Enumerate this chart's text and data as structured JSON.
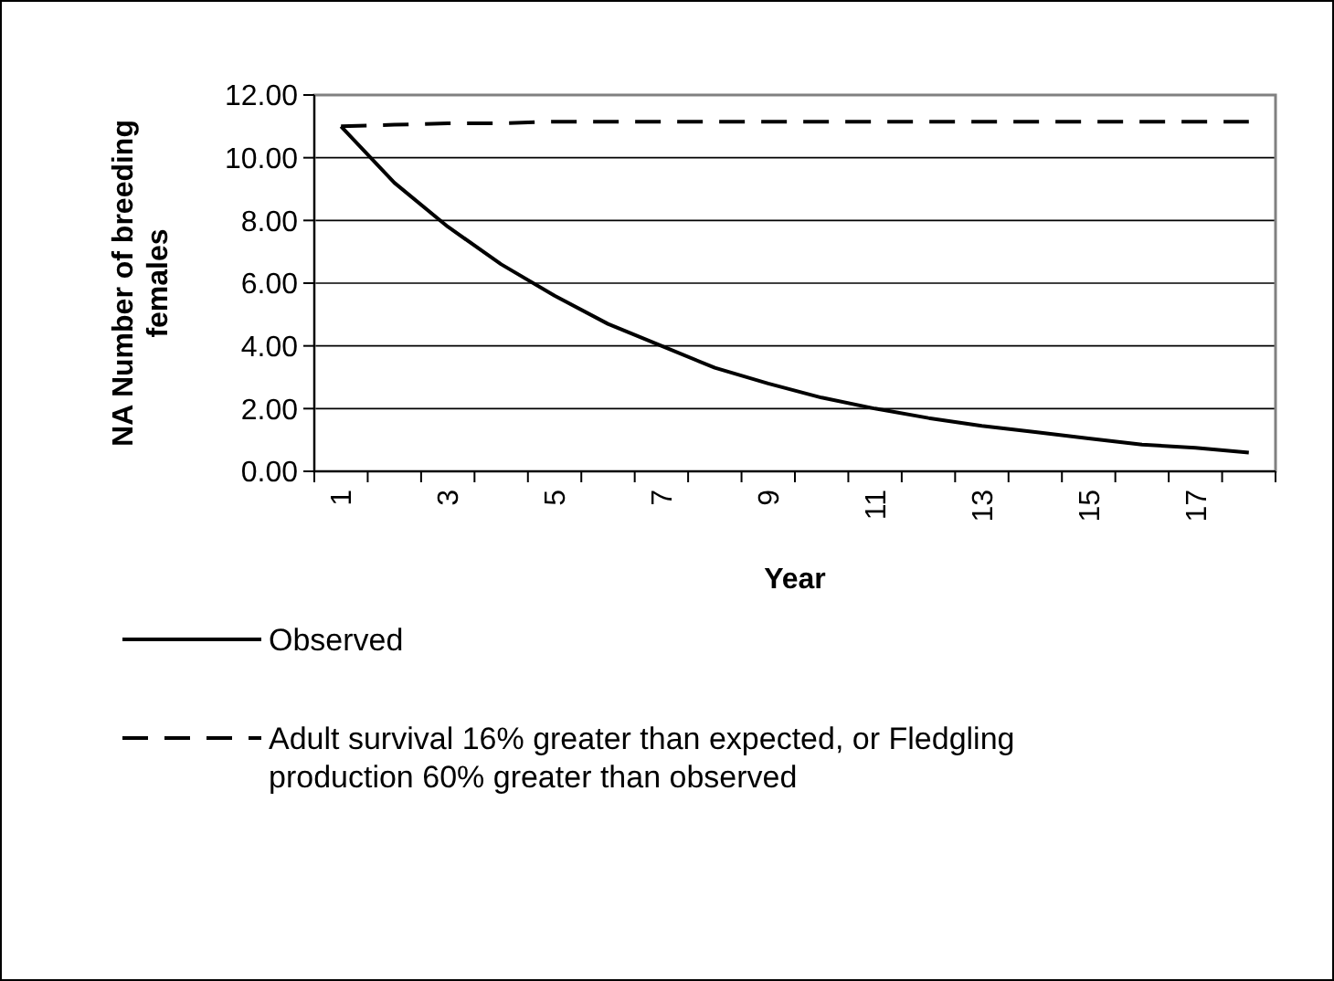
{
  "chart_data": {
    "type": "line",
    "xlabel": "Year",
    "ylabel": "NA  Number of breeding females",
    "categories": [
      "1",
      null,
      "3",
      null,
      "5",
      null,
      "7",
      null,
      "9",
      null,
      "11",
      null,
      "13",
      null,
      "15",
      null,
      "17",
      null
    ],
    "series": [
      {
        "name": "Observed",
        "color": "#000000",
        "line_style": "solid",
        "values": [
          11,
          9.2,
          7.8,
          6.6,
          5.6,
          4.7,
          4.0,
          3.3,
          2.8,
          2.35,
          2.0,
          1.7,
          1.45,
          1.25,
          1.05,
          0.85,
          0.75,
          0.6
        ]
      },
      {
        "name": "Adult survival 16% greater than expected, or Fledgling production 60% greater than observed",
        "color": "#000000",
        "line_style": "dashed",
        "values": [
          11.0,
          11.05,
          11.1,
          11.1,
          11.15,
          11.15,
          11.15,
          11.15,
          11.15,
          11.15,
          11.15,
          11.15,
          11.15,
          11.15,
          11.15,
          11.15,
          11.15,
          11.15
        ]
      }
    ],
    "ylim": [
      0,
      12
    ],
    "yticks": [
      {
        "value": 0,
        "label": "0.00"
      },
      {
        "value": 2,
        "label": "2.00"
      },
      {
        "value": 4,
        "label": "4.00"
      },
      {
        "value": 6,
        "label": "6.00"
      },
      {
        "value": 8,
        "label": "8.00"
      },
      {
        "value": 10,
        "label": "10.00"
      },
      {
        "value": 12,
        "label": "12.00"
      }
    ],
    "grid": "y",
    "legend": "bottom"
  }
}
